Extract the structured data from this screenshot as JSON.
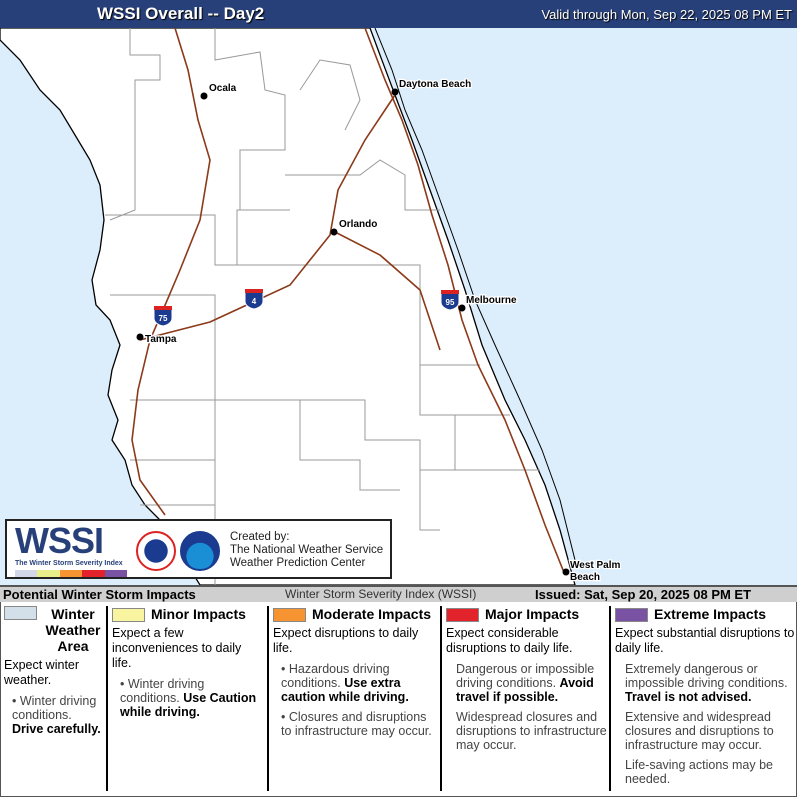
{
  "header": {
    "title": "WSSI Overall -- Day2",
    "valid": "Valid through Mon, Sep 22, 2025 08 PM ET"
  },
  "map": {
    "colors": {
      "water": "#dcedfb",
      "land": "#ffffff",
      "roads": "#8b3a1a",
      "counties": "#999999"
    },
    "cities": [
      "Ocala",
      "Daytona Beach",
      "Orlando",
      "Melbourne",
      "Tampa",
      "West Palm",
      "Beach"
    ],
    "shields": [
      "75",
      "4",
      "95"
    ]
  },
  "logo": {
    "text": "WSSI",
    "subtitle": "The Winter Storm Severity Index",
    "credit": [
      "Created by:",
      "The National Weather Service",
      "Weather Prediction Center"
    ],
    "seals": [
      "National Weather Service",
      "NOAA"
    ]
  },
  "strip": {
    "left": "Potential Winter Storm Impacts",
    "center": "Winter Storm Severity Index (WSSI)",
    "issued": "Issued: Sat, Sep 20, 2025 08 PM ET"
  },
  "legend": [
    {
      "label": "Winter Weather Area",
      "color": "#d3dfe9",
      "desc": "Expect winter weather.",
      "bullets": [
        {
          "t": "Winter driving conditions. ",
          "b": "Drive carefully."
        }
      ]
    },
    {
      "label": "Minor Impacts",
      "color": "#f8f4a0",
      "desc": "Expect a few inconveniences to daily life.",
      "bullets": [
        {
          "t": "Winter driving conditions. ",
          "b": "Use Caution while driving."
        }
      ]
    },
    {
      "label": "Moderate Impacts",
      "color": "#f59430",
      "desc": "Expect disruptions to daily life.",
      "bullets": [
        {
          "t": "Hazardous driving conditions. ",
          "b": "Use extra caution while driving."
        },
        {
          "t": "Closures and disruptions to infrastructure may occur.",
          "b": ""
        }
      ]
    },
    {
      "label": "Major Impacts",
      "color": "#e3232c",
      "desc": "Expect considerable disruptions to daily life.",
      "bullets": [
        {
          "t": "Dangerous or impossible driving conditions. ",
          "b": "Avoid travel if possible."
        },
        {
          "t": "Widespread closures and disruptions to infrastructure may occur.",
          "b": ""
        }
      ]
    },
    {
      "label": "Extreme Impacts",
      "color": "#7a52a3",
      "desc": "Expect substantial disruptions to daily life.",
      "bullets": [
        {
          "t": "Extremely dangerous or impossible driving conditions. ",
          "b": "Travel is not advised."
        },
        {
          "t": "Extensive and widespread closures and disruptions to infrastructure may occur.",
          "b": ""
        },
        {
          "t": "Life-saving actions may be needed.",
          "b": ""
        }
      ]
    }
  ]
}
